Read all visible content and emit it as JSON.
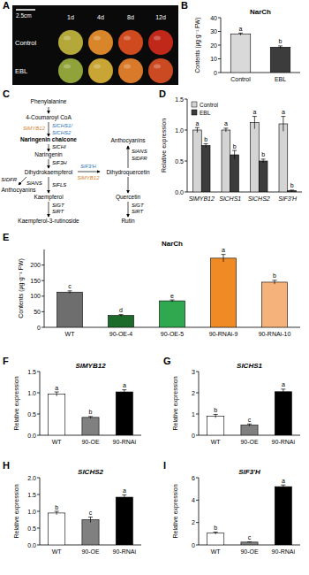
{
  "panel_letters": [
    "A",
    "B",
    "C",
    "D",
    "E",
    "F",
    "G",
    "H",
    "I"
  ],
  "photo": {
    "scale_bar": "2.5cm",
    "columns": [
      "1d",
      "4d",
      "8d",
      "12d"
    ],
    "rows": [
      "Control",
      "EBL"
    ]
  },
  "pathway": {
    "nodes": [
      {
        "label": "Phenylalanine",
        "kind": "compound"
      },
      {
        "label": "4-Coumaroyl CoA",
        "kind": "compound"
      },
      {
        "label": "SlMYB12",
        "kind": "gene",
        "color": "#d9822b"
      },
      {
        "label": "SlCHS1/",
        "kind": "gene",
        "color": "#2e75b6"
      },
      {
        "label": "SlCHS2",
        "kind": "gene",
        "color": "#2e75b6"
      },
      {
        "label": "Naringenin chalcone",
        "kind": "key-compound"
      },
      {
        "label": "SlCHI",
        "kind": "gene"
      },
      {
        "label": "Naringenin",
        "kind": "compound"
      },
      {
        "label": "SlF3H",
        "kind": "gene"
      },
      {
        "label": "Dihydrokaempferol",
        "kind": "compound"
      },
      {
        "label": "SlF3'H",
        "kind": "gene",
        "color": "#2e75b6"
      },
      {
        "label": "SlMYB12",
        "kind": "gene",
        "color": "#d9822b"
      },
      {
        "label": "Dihydroquercetin",
        "kind": "compound"
      },
      {
        "label": "SlDFR",
        "kind": "gene"
      },
      {
        "label": "SlANS",
        "kind": "gene"
      },
      {
        "label": "Anthocyanins",
        "kind": "compound"
      },
      {
        "label": "SlFLS",
        "kind": "gene"
      },
      {
        "label": "Kaempferol",
        "kind": "compound"
      },
      {
        "label": "SlGT",
        "kind": "gene"
      },
      {
        "label": "SlRT",
        "kind": "gene"
      },
      {
        "label": "Kaempferol-3-rutinoside",
        "kind": "compound"
      },
      {
        "label": "Anthocyanins",
        "kind": "compound"
      },
      {
        "label": "SlANS",
        "kind": "gene"
      },
      {
        "label": "SlDFR",
        "kind": "gene"
      },
      {
        "label": "Quercetin",
        "kind": "compound"
      },
      {
        "label": "SlGT",
        "kind": "gene"
      },
      {
        "label": "SlRT",
        "kind": "gene"
      },
      {
        "label": "Rutin",
        "kind": "compound"
      }
    ]
  },
  "chart_data": [
    {
      "type": "bar",
      "title": "NarCh",
      "y_label": "Contents (µg·g⁻¹ FW)",
      "categories": [
        "Control",
        "EBL"
      ],
      "values": [
        28,
        18.5
      ],
      "errors": [
        0.8,
        0.9
      ],
      "annotations": [
        "a",
        "b"
      ],
      "colors": [
        "#d9d9d9",
        "#3c3c3c"
      ],
      "ylim": [
        0,
        40
      ],
      "yticks": [
        0,
        10,
        20,
        30,
        40
      ]
    },
    {
      "type": "bar",
      "y_label": "Relative expression",
      "categories": [
        "SlMYB12",
        "SlCHS1",
        "SlCHS2",
        "SlF3'H"
      ],
      "series": [
        {
          "name": "Control",
          "color": "#d4d4d4",
          "values": [
            1.0,
            1.0,
            1.12,
            1.1
          ],
          "errors": [
            0.04,
            0.03,
            0.1,
            0.12
          ],
          "annotations": [
            "a",
            "a",
            "a",
            "a"
          ]
        },
        {
          "name": "EBL",
          "color": "#3c3c3c",
          "values": [
            0.75,
            0.6,
            0.5,
            0.02
          ],
          "errors": [
            0.03,
            0.07,
            0.03,
            0.01
          ],
          "annotations": [
            "b",
            "b",
            "b",
            "b"
          ]
        }
      ],
      "ylim": [
        0,
        1.5
      ],
      "yticks": [
        {
          "value": 0,
          "label": "0.0"
        },
        {
          "value": 0.5,
          "label": "0.5"
        },
        {
          "value": 1,
          "label": "1.0"
        },
        {
          "value": 1.5,
          "label": "1.5"
        }
      ],
      "legend": "top-left"
    },
    {
      "type": "bar",
      "title": "NarCh",
      "y_label": "Contents (µg·g⁻¹ FW)",
      "categories": [
        "WT",
        "90-OE-4",
        "90-OE-5",
        "90-RNAi-9",
        "90-RNAi-10"
      ],
      "values": [
        113,
        38,
        85,
        222,
        145
      ],
      "errors": [
        4,
        3,
        3,
        12,
        6
      ],
      "annotations": [
        "c",
        "d",
        "e",
        "a",
        "b"
      ],
      "colors": [
        "#6e6e6e",
        "#1d6b2a",
        "#2fa84f",
        "#f08a24",
        "#f5b27a"
      ],
      "ylim": [
        0,
        250
      ],
      "yticks": [
        0,
        50,
        100,
        150,
        200
      ]
    },
    {
      "type": "bar",
      "title": "SlMYB12",
      "y_label": "Relative expression",
      "categories": [
        "WT",
        "90-OE",
        "90-RNAi"
      ],
      "values": [
        0.97,
        0.42,
        1.02
      ],
      "errors": [
        0.05,
        0.02,
        0.05
      ],
      "annotations": [
        "a",
        "b",
        "a"
      ],
      "colors": [
        "#ffffff",
        "#808080",
        "#000000"
      ],
      "ylim": [
        0,
        1.5
      ],
      "yticks": [
        {
          "value": 0,
          "label": "0.0"
        },
        {
          "value": 0.5,
          "label": "0.5"
        },
        {
          "value": 1,
          "label": "1.0"
        },
        {
          "value": 1.5,
          "label": "1.5"
        }
      ]
    },
    {
      "type": "bar",
      "title": "SlCHS1",
      "y_label": "Relative expression",
      "categories": [
        "WT",
        "90-OE",
        "90-RNAi"
      ],
      "values": [
        0.9,
        0.48,
        2.05
      ],
      "errors": [
        0.08,
        0.05,
        0.12
      ],
      "annotations": [
        "b",
        "c",
        "a"
      ],
      "colors": [
        "#ffffff",
        "#808080",
        "#000000"
      ],
      "ylim": [
        0,
        3
      ],
      "yticks": [
        0,
        1,
        2,
        3
      ]
    },
    {
      "type": "bar",
      "title": "SlCHS2",
      "y_label": "Relative expression",
      "categories": [
        "WT",
        "90-OE",
        "90-RNAi"
      ],
      "values": [
        0.95,
        0.75,
        1.42
      ],
      "errors": [
        0.05,
        0.08,
        0.07
      ],
      "annotations": [
        "b",
        "c",
        "a"
      ],
      "colors": [
        "#ffffff",
        "#808080",
        "#000000"
      ],
      "ylim": [
        0,
        2
      ],
      "yticks": [
        {
          "value": 0,
          "label": "0.0"
        },
        {
          "value": 0.5,
          "label": "0.5"
        },
        {
          "value": 1,
          "label": "1.0"
        },
        {
          "value": 1.5,
          "label": "1.5"
        },
        {
          "value": 2,
          "label": "2.0"
        }
      ]
    },
    {
      "type": "bar",
      "title": "SlF3'H",
      "y_label": "Relative expression",
      "categories": [
        "WT",
        "90-OE",
        "90-RNAi"
      ],
      "values": [
        1.05,
        0.25,
        5.2
      ],
      "errors": [
        0.1,
        0.02,
        0.15
      ],
      "annotations": [
        "b",
        "c",
        "a"
      ],
      "colors": [
        "#ffffff",
        "#808080",
        "#000000"
      ],
      "ylim": [
        0,
        6
      ],
      "yticks": [
        0,
        2,
        4,
        6
      ]
    }
  ]
}
